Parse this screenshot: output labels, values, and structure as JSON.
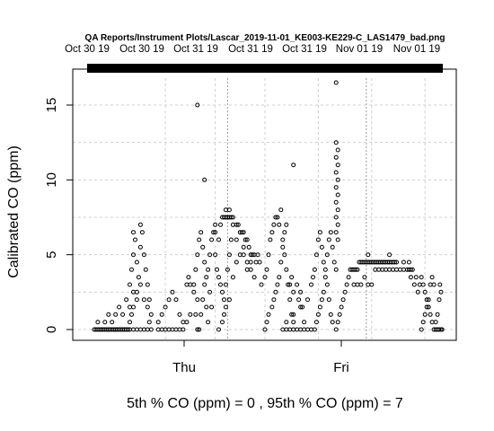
{
  "chart_data": {
    "type": "scatter",
    "title": "QA Reports/Instrument Plots/Lascar_2019-11-01_KE003-KE229-C_LAS1479_bad.png",
    "top_ticks": [
      "Oct 30 19",
      "Oct 30 19",
      "Oct 31 19",
      "Oct 31 19",
      "Oct 31 19",
      "Nov 01 19",
      "Nov 01 19"
    ],
    "x_ticks": [
      "Thu",
      "Fri"
    ],
    "ylabel": "Calibrated CO (ppm)",
    "y_ticks": [
      0,
      5,
      10,
      15
    ],
    "ylim": [
      -0.5,
      17
    ],
    "xlim": [
      0,
      1
    ],
    "footer": "5th % CO (ppm) =  0 , 95th % CO (ppm)  =  7",
    "grid": true,
    "points": [
      [
        0.02,
        0
      ],
      [
        0.025,
        0
      ],
      [
        0.03,
        0
      ],
      [
        0.035,
        0
      ],
      [
        0.04,
        0
      ],
      [
        0.045,
        0
      ],
      [
        0.05,
        0
      ],
      [
        0.055,
        0
      ],
      [
        0.06,
        0
      ],
      [
        0.065,
        0
      ],
      [
        0.07,
        0
      ],
      [
        0.075,
        0
      ],
      [
        0.08,
        0
      ],
      [
        0.085,
        0
      ],
      [
        0.09,
        0
      ],
      [
        0.095,
        0
      ],
      [
        0.1,
        0
      ],
      [
        0.105,
        0
      ],
      [
        0.11,
        0
      ],
      [
        0.115,
        0
      ],
      [
        0.12,
        0
      ],
      [
        0.13,
        0
      ],
      [
        0.14,
        0
      ],
      [
        0.15,
        0
      ],
      [
        0.16,
        0
      ],
      [
        0.17,
        0
      ],
      [
        0.18,
        0
      ],
      [
        0.03,
        0.5
      ],
      [
        0.05,
        0.5
      ],
      [
        0.06,
        1
      ],
      [
        0.07,
        0.5
      ],
      [
        0.08,
        1
      ],
      [
        0.09,
        1.5
      ],
      [
        0.1,
        1
      ],
      [
        0.11,
        2
      ],
      [
        0.12,
        1.5
      ],
      [
        0.13,
        2.5
      ],
      [
        0.14,
        2
      ],
      [
        0.12,
        3
      ],
      [
        0.125,
        4
      ],
      [
        0.13,
        5
      ],
      [
        0.13,
        6.5
      ],
      [
        0.135,
        6
      ],
      [
        0.14,
        4.5
      ],
      [
        0.145,
        3.5
      ],
      [
        0.15,
        5.5
      ],
      [
        0.15,
        7
      ],
      [
        0.155,
        6.5
      ],
      [
        0.16,
        5
      ],
      [
        0.165,
        4
      ],
      [
        0.17,
        3
      ],
      [
        0.175,
        2
      ],
      [
        0.18,
        1
      ],
      [
        0.12,
        0.5
      ],
      [
        0.125,
        1
      ],
      [
        0.13,
        1.5
      ],
      [
        0.14,
        2.5
      ],
      [
        0.15,
        3
      ],
      [
        0.16,
        2
      ],
      [
        0.17,
        1.5
      ],
      [
        0.175,
        0.5
      ],
      [
        0.2,
        0
      ],
      [
        0.21,
        0
      ],
      [
        0.22,
        0
      ],
      [
        0.23,
        0
      ],
      [
        0.24,
        0
      ],
      [
        0.25,
        0
      ],
      [
        0.2,
        0.5
      ],
      [
        0.21,
        1
      ],
      [
        0.22,
        1.5
      ],
      [
        0.23,
        2
      ],
      [
        0.24,
        2.5
      ],
      [
        0.25,
        2
      ],
      [
        0.26,
        1
      ],
      [
        0.27,
        0.5
      ],
      [
        0.28,
        3
      ],
      [
        0.285,
        3.5
      ],
      [
        0.29,
        3
      ],
      [
        0.3,
        2.5
      ],
      [
        0.31,
        2
      ],
      [
        0.305,
        1
      ],
      [
        0.31,
        0
      ],
      [
        0.26,
        0
      ],
      [
        0.27,
        0
      ],
      [
        0.28,
        0.5
      ],
      [
        0.29,
        1
      ],
      [
        0.3,
        3
      ],
      [
        0.305,
        4
      ],
      [
        0.31,
        5
      ],
      [
        0.315,
        6
      ],
      [
        0.32,
        6.5
      ],
      [
        0.325,
        5.5
      ],
      [
        0.33,
        4.5
      ],
      [
        0.335,
        3.5
      ],
      [
        0.34,
        4
      ],
      [
        0.345,
        5
      ],
      [
        0.35,
        6
      ],
      [
        0.355,
        6.5
      ],
      [
        0.36,
        7
      ],
      [
        0.31,
        15
      ],
      [
        0.33,
        10
      ],
      [
        0.315,
        0
      ],
      [
        0.32,
        1
      ],
      [
        0.325,
        2
      ],
      [
        0.33,
        3
      ],
      [
        0.335,
        1.5
      ],
      [
        0.34,
        0.5
      ],
      [
        0.345,
        2.5
      ],
      [
        0.35,
        1.5
      ],
      [
        0.36,
        6.5
      ],
      [
        0.37,
        6
      ],
      [
        0.375,
        7
      ],
      [
        0.38,
        7.5
      ],
      [
        0.385,
        7.5
      ],
      [
        0.39,
        7.5
      ],
      [
        0.395,
        7.5
      ],
      [
        0.4,
        7.5
      ],
      [
        0.405,
        7.5
      ],
      [
        0.41,
        7.5
      ],
      [
        0.39,
        8
      ],
      [
        0.4,
        8
      ],
      [
        0.41,
        7
      ],
      [
        0.42,
        7
      ],
      [
        0.425,
        7
      ],
      [
        0.43,
        6.5
      ],
      [
        0.435,
        6.5
      ],
      [
        0.44,
        6.5
      ],
      [
        0.445,
        6
      ],
      [
        0.45,
        6
      ],
      [
        0.455,
        5.5
      ],
      [
        0.46,
        5
      ],
      [
        0.465,
        5
      ],
      [
        0.47,
        5
      ],
      [
        0.475,
        4.5
      ],
      [
        0.48,
        5
      ],
      [
        0.485,
        4.5
      ],
      [
        0.36,
        5
      ],
      [
        0.365,
        4
      ],
      [
        0.37,
        3.5
      ],
      [
        0.375,
        3
      ],
      [
        0.38,
        2.5
      ],
      [
        0.385,
        2
      ],
      [
        0.39,
        3
      ],
      [
        0.395,
        4
      ],
      [
        0.4,
        5
      ],
      [
        0.405,
        6
      ],
      [
        0.42,
        6
      ],
      [
        0.44,
        5.5
      ],
      [
        0.45,
        4
      ],
      [
        0.46,
        4.5
      ],
      [
        0.37,
        0
      ],
      [
        0.38,
        0.5
      ],
      [
        0.385,
        1
      ],
      [
        0.39,
        1.5
      ],
      [
        0.4,
        2
      ],
      [
        0.41,
        3.5
      ],
      [
        0.42,
        4.5
      ],
      [
        0.43,
        5
      ],
      [
        0.44,
        5
      ],
      [
        0.45,
        4.5
      ],
      [
        0.46,
        4
      ],
      [
        0.47,
        3.5
      ],
      [
        0.49,
        3
      ],
      [
        0.5,
        3.5
      ],
      [
        0.505,
        4
      ],
      [
        0.51,
        5
      ],
      [
        0.515,
        6
      ],
      [
        0.52,
        6.5
      ],
      [
        0.525,
        7
      ],
      [
        0.53,
        7.5
      ],
      [
        0.535,
        7.5
      ],
      [
        0.54,
        7
      ],
      [
        0.545,
        8
      ],
      [
        0.55,
        6
      ],
      [
        0.555,
        5
      ],
      [
        0.56,
        4
      ],
      [
        0.565,
        3
      ],
      [
        0.57,
        2
      ],
      [
        0.575,
        1
      ],
      [
        0.58,
        0.5
      ],
      [
        0.5,
        0
      ],
      [
        0.505,
        0.5
      ],
      [
        0.51,
        1
      ],
      [
        0.52,
        1.5
      ],
      [
        0.525,
        2
      ],
      [
        0.53,
        2.5
      ],
      [
        0.535,
        3
      ],
      [
        0.54,
        3.5
      ],
      [
        0.545,
        4.5
      ],
      [
        0.55,
        5.5
      ],
      [
        0.555,
        6.5
      ],
      [
        0.56,
        7
      ],
      [
        0.55,
        0
      ],
      [
        0.56,
        0
      ],
      [
        0.57,
        0
      ],
      [
        0.58,
        0
      ],
      [
        0.59,
        0
      ],
      [
        0.6,
        0
      ],
      [
        0.61,
        0
      ],
      [
        0.62,
        0
      ],
      [
        0.63,
        0
      ],
      [
        0.56,
        0.5
      ],
      [
        0.58,
        1
      ],
      [
        0.6,
        1.5
      ],
      [
        0.62,
        2
      ],
      [
        0.58,
        11
      ],
      [
        0.57,
        3
      ],
      [
        0.575,
        3.5
      ],
      [
        0.58,
        2.5
      ],
      [
        0.59,
        3
      ],
      [
        0.595,
        2
      ],
      [
        0.6,
        2.5
      ],
      [
        0.605,
        1.5
      ],
      [
        0.61,
        0.5
      ],
      [
        0.63,
        3
      ],
      [
        0.635,
        3.5
      ],
      [
        0.64,
        4
      ],
      [
        0.645,
        5
      ],
      [
        0.65,
        6
      ],
      [
        0.655,
        6.5
      ],
      [
        0.66,
        5.5
      ],
      [
        0.665,
        4.5
      ],
      [
        0.67,
        4
      ],
      [
        0.675,
        3
      ],
      [
        0.68,
        2
      ],
      [
        0.685,
        1
      ],
      [
        0.69,
        0.5
      ],
      [
        0.64,
        0
      ],
      [
        0.645,
        0.5
      ],
      [
        0.65,
        1
      ],
      [
        0.655,
        1.5
      ],
      [
        0.66,
        2
      ],
      [
        0.665,
        2.5
      ],
      [
        0.67,
        3.5
      ],
      [
        0.675,
        5
      ],
      [
        0.68,
        6
      ],
      [
        0.685,
        6.5
      ],
      [
        0.69,
        5.5
      ],
      [
        0.695,
        4.5
      ],
      [
        0.7,
        4
      ],
      [
        0.7,
        16.5
      ],
      [
        0.7,
        12.5
      ],
      [
        0.705,
        12
      ],
      [
        0.7,
        11.5
      ],
      [
        0.705,
        11
      ],
      [
        0.7,
        10.5
      ],
      [
        0.705,
        10
      ],
      [
        0.7,
        9.5
      ],
      [
        0.705,
        9
      ],
      [
        0.7,
        8.5
      ],
      [
        0.705,
        8
      ],
      [
        0.7,
        7.5
      ],
      [
        0.705,
        7
      ],
      [
        0.7,
        6.5
      ],
      [
        0.705,
        6
      ],
      [
        0.7,
        0
      ],
      [
        0.705,
        0.5
      ],
      [
        0.71,
        1
      ],
      [
        0.715,
        1.5
      ],
      [
        0.72,
        2
      ],
      [
        0.725,
        2.5
      ],
      [
        0.73,
        3
      ],
      [
        0.735,
        3.5
      ],
      [
        0.74,
        4
      ],
      [
        0.745,
        4
      ],
      [
        0.75,
        4
      ],
      [
        0.755,
        4
      ],
      [
        0.76,
        4
      ],
      [
        0.765,
        4.5
      ],
      [
        0.77,
        4.5
      ],
      [
        0.775,
        4.5
      ],
      [
        0.78,
        4.5
      ],
      [
        0.785,
        4.5
      ],
      [
        0.79,
        4.5
      ],
      [
        0.795,
        4.5
      ],
      [
        0.8,
        4.5
      ],
      [
        0.805,
        4.5
      ],
      [
        0.81,
        4.5
      ],
      [
        0.815,
        4.5
      ],
      [
        0.82,
        4.5
      ],
      [
        0.825,
        4.5
      ],
      [
        0.83,
        4.5
      ],
      [
        0.835,
        4.5
      ],
      [
        0.84,
        4.5
      ],
      [
        0.845,
        4.5
      ],
      [
        0.85,
        4.5
      ],
      [
        0.855,
        4.5
      ],
      [
        0.86,
        4.5
      ],
      [
        0.865,
        4.5
      ],
      [
        0.75,
        3
      ],
      [
        0.76,
        3
      ],
      [
        0.77,
        3
      ],
      [
        0.78,
        3.5
      ],
      [
        0.79,
        3
      ],
      [
        0.8,
        3
      ],
      [
        0.81,
        4
      ],
      [
        0.82,
        4
      ],
      [
        0.83,
        4
      ],
      [
        0.84,
        4
      ],
      [
        0.85,
        4
      ],
      [
        0.86,
        4
      ],
      [
        0.87,
        4
      ],
      [
        0.88,
        4
      ],
      [
        0.89,
        4
      ],
      [
        0.9,
        4
      ],
      [
        0.905,
        4
      ],
      [
        0.91,
        4
      ],
      [
        0.915,
        4
      ],
      [
        0.79,
        5
      ],
      [
        0.85,
        5
      ],
      [
        0.87,
        4.5
      ],
      [
        0.89,
        4.5
      ],
      [
        0.905,
        4.5
      ],
      [
        0.91,
        3.5
      ],
      [
        0.92,
        3
      ],
      [
        0.925,
        3.5
      ],
      [
        0.93,
        2.5
      ],
      [
        0.935,
        3
      ],
      [
        0.94,
        3.5
      ],
      [
        0.945,
        3
      ],
      [
        0.95,
        2.5
      ],
      [
        0.955,
        2
      ],
      [
        0.96,
        1.5
      ],
      [
        0.965,
        1
      ],
      [
        0.97,
        0.5
      ],
      [
        0.94,
        0
      ],
      [
        0.945,
        0.5
      ],
      [
        0.95,
        1
      ],
      [
        0.955,
        1.5
      ],
      [
        0.96,
        2
      ],
      [
        0.965,
        3
      ],
      [
        0.97,
        3.5
      ],
      [
        0.975,
        3
      ],
      [
        0.975,
        0
      ],
      [
        0.98,
        0
      ],
      [
        0.985,
        0
      ],
      [
        0.99,
        0
      ],
      [
        0.995,
        0
      ],
      [
        0.98,
        0.5
      ],
      [
        0.985,
        1
      ],
      [
        0.99,
        2
      ],
      [
        0.995,
        2.5
      ],
      [
        0.992,
        3
      ],
      [
        0.998,
        0
      ]
    ]
  }
}
